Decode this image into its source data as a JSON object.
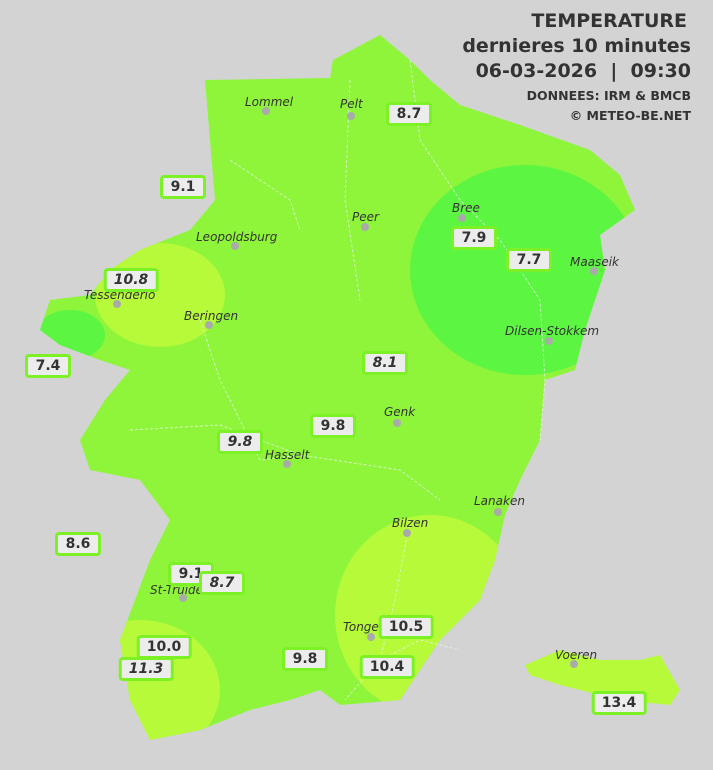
{
  "header": {
    "title": "TEMPERATURE",
    "subtitle": "dernieres 10 minutes",
    "datetime": "06-03-2026  |  09:30",
    "source": "DONNEES: IRM & BMCB",
    "copyright": "© METEO-BE.NET"
  },
  "colors": {
    "background": "#d3d3d3",
    "temp_7": "#5cf542",
    "temp_8_9": "#8ef53a",
    "temp_10_plus": "#b6fa3a",
    "label_border": "#7cf226"
  },
  "cities": [
    "Lommel",
    "Pelt",
    "Peer",
    "Bree",
    "Maaseik",
    "Leopoldsburg",
    "Tessenderlo",
    "Beringen",
    "Dilsen-Stokkem",
    "Genk",
    "Hasselt",
    "Lanaken",
    "Bilzen",
    "St-Truiden",
    "Tongeren",
    "Voeren"
  ],
  "readings": [
    {
      "value": "8.7",
      "italic": false
    },
    {
      "value": "9.1",
      "italic": false
    },
    {
      "value": "7.9",
      "italic": false
    },
    {
      "value": "7.7",
      "italic": false
    },
    {
      "value": "10.8",
      "italic": true
    },
    {
      "value": "7.4",
      "italic": false
    },
    {
      "value": "8.1",
      "italic": true
    },
    {
      "value": "9.8",
      "italic": false
    },
    {
      "value": "9.8",
      "italic": true
    },
    {
      "value": "8.6",
      "italic": false
    },
    {
      "value": "9.1",
      "italic": false
    },
    {
      "value": "8.7",
      "italic": true
    },
    {
      "value": "10.5",
      "italic": false
    },
    {
      "value": "10.0",
      "italic": false
    },
    {
      "value": "11.3",
      "italic": true
    },
    {
      "value": "9.8",
      "italic": false
    },
    {
      "value": "10.4",
      "italic": false
    },
    {
      "value": "13.4",
      "italic": false
    }
  ]
}
